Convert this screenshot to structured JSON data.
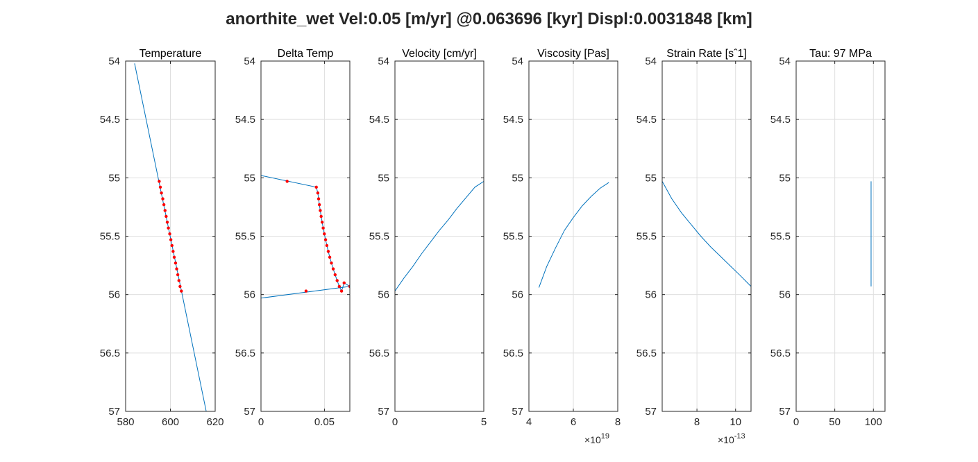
{
  "figure_title": "anorthite_wet Vel:0.05 [m/yr] @0.063696 [kyr] Displ:0.0031848 [km]",
  "colors": {
    "line": "#0072BD",
    "marker": "#FF0000",
    "axis": "#262626",
    "grid": "#DFDFDF"
  },
  "chart_data": [
    {
      "type": "line",
      "title": "Temperature",
      "xlim": [
        580,
        620
      ],
      "ylim": [
        54,
        57
      ],
      "y_reversed": true,
      "grid": true,
      "xticks": [
        580,
        600,
        620
      ],
      "xtick_labels": [
        "580",
        "600",
        "620"
      ],
      "yticks": [
        54,
        54.5,
        55,
        55.5,
        56,
        56.5,
        57
      ],
      "ytick_labels": [
        "54",
        "54.5",
        "55",
        "55.5",
        "56",
        "56.5",
        "57"
      ],
      "series": [
        {
          "style": "line",
          "x": [
            584,
            616
          ],
          "y": [
            54.02,
            57
          ]
        },
        {
          "style": "markers",
          "x": [
            595.0,
            595.5,
            596.0,
            596.6,
            597.1,
            597.6,
            598.1,
            598.6,
            599.1,
            599.7,
            600.2,
            600.7,
            601.2,
            601.7,
            602.3,
            602.8,
            603.3,
            603.8,
            604.3,
            604.9
          ],
          "y": [
            55.03,
            55.08,
            55.13,
            55.18,
            55.23,
            55.28,
            55.33,
            55.38,
            55.43,
            55.48,
            55.53,
            55.58,
            55.63,
            55.68,
            55.73,
            55.78,
            55.83,
            55.88,
            55.93,
            55.97
          ]
        }
      ]
    },
    {
      "type": "line",
      "title": "Delta Temp",
      "xlim": [
        0,
        0.07
      ],
      "ylim": [
        54,
        57
      ],
      "y_reversed": true,
      "grid": true,
      "xticks": [
        0,
        0.05
      ],
      "xtick_labels": [
        "0",
        "0.05"
      ],
      "yticks": [
        54,
        54.5,
        55,
        55.5,
        56,
        56.5,
        57
      ],
      "ytick_labels": [
        "54",
        "54.5",
        "55",
        "55.5",
        "56",
        "56.5",
        "57"
      ],
      "series": [
        {
          "style": "line",
          "x": [
            0,
            0,
            0.0436,
            0.0448,
            0.0454,
            0.046,
            0.0467,
            0.0474,
            0.0482,
            0.049,
            0.0499,
            0.0509,
            0.0519,
            0.053,
            0.0542,
            0.0555,
            0.0569,
            0.0584,
            0.06,
            0.0617,
            0.0635,
            0.0655,
            0.07,
            0,
            0
          ],
          "y": [
            54,
            54.98,
            55.08,
            55.13,
            55.18,
            55.23,
            55.28,
            55.33,
            55.38,
            55.43,
            55.48,
            55.53,
            55.58,
            55.63,
            55.68,
            55.73,
            55.78,
            55.83,
            55.88,
            55.93,
            55.97,
            55.9,
            55.93,
            56.03,
            57
          ]
        },
        {
          "style": "markers",
          "x": [
            0.0206,
            0.0436,
            0.0448,
            0.0454,
            0.046,
            0.0467,
            0.0474,
            0.0482,
            0.049,
            0.0499,
            0.0509,
            0.0519,
            0.053,
            0.0542,
            0.0555,
            0.0569,
            0.0584,
            0.06,
            0.0617,
            0.0635,
            0.0655,
            0.07,
            0.0355
          ],
          "y": [
            55.03,
            55.08,
            55.13,
            55.18,
            55.23,
            55.28,
            55.33,
            55.38,
            55.43,
            55.48,
            55.53,
            55.58,
            55.63,
            55.68,
            55.73,
            55.78,
            55.83,
            55.88,
            55.93,
            55.97,
            55.9,
            55.93,
            55.97
          ]
        }
      ]
    },
    {
      "type": "line",
      "title": "Velocity [cm/yr]",
      "xlim": [
        0,
        5
      ],
      "ylim": [
        54,
        57
      ],
      "y_reversed": true,
      "grid": true,
      "xticks": [
        0,
        5
      ],
      "xtick_labels": [
        "0",
        "5"
      ],
      "yticks": [
        54,
        54.5,
        55,
        55.5,
        56,
        56.5,
        57
      ],
      "ytick_labels": [
        "54",
        "54.5",
        "55",
        "55.5",
        "56",
        "56.5",
        "57"
      ],
      "series": [
        {
          "style": "line",
          "x": [
            0,
            0.5,
            1.0,
            1.5,
            2.0,
            2.5,
            3.0,
            3.5,
            4.0,
            4.5,
            5.0
          ],
          "y": [
            55.97,
            55.86,
            55.76,
            55.65,
            55.55,
            55.45,
            55.36,
            55.26,
            55.17,
            55.08,
            55.03
          ]
        }
      ]
    },
    {
      "type": "line",
      "title": "Viscosity [Pas]",
      "xlim": [
        4,
        8
      ],
      "ylim": [
        54,
        57
      ],
      "y_reversed": true,
      "grid": true,
      "x_exponent": "×10",
      "x_exponent_power": "19",
      "xticks": [
        4,
        6,
        8
      ],
      "xtick_labels": [
        "4",
        "6",
        "8"
      ],
      "yticks": [
        54,
        54.5,
        55,
        55.5,
        56,
        56.5,
        57
      ],
      "ytick_labels": [
        "54",
        "54.5",
        "55",
        "55.5",
        "56",
        "56.5",
        "57"
      ],
      "series": [
        {
          "style": "line",
          "x": [
            4.45,
            4.8,
            5.2,
            5.6,
            6.0,
            6.4,
            6.8,
            7.2,
            7.6
          ],
          "y": [
            55.94,
            55.76,
            55.6,
            55.45,
            55.34,
            55.24,
            55.16,
            55.09,
            55.04
          ]
        }
      ]
    },
    {
      "type": "line",
      "title": "Strain Rate [sˆ1]",
      "xlim": [
        6.2,
        10.8
      ],
      "ylim": [
        54,
        57
      ],
      "y_reversed": true,
      "grid": true,
      "x_exponent": "×10",
      "x_exponent_power": "-13",
      "xticks": [
        8,
        10
      ],
      "xtick_labels": [
        "8",
        "10"
      ],
      "yticks": [
        54,
        54.5,
        55,
        55.5,
        56,
        56.5,
        57
      ],
      "ytick_labels": [
        "54",
        "54.5",
        "55",
        "55.5",
        "56",
        "56.5",
        "57"
      ],
      "series": [
        {
          "style": "line",
          "x": [
            6.2,
            6.7,
            7.2,
            7.7,
            8.2,
            8.7,
            9.2,
            9.7,
            10.2,
            10.8
          ],
          "y": [
            55.03,
            55.18,
            55.3,
            55.4,
            55.5,
            55.59,
            55.67,
            55.75,
            55.83,
            55.93
          ]
        }
      ]
    },
    {
      "type": "line",
      "title": "Tau: 97 MPa",
      "xlim": [
        0,
        115
      ],
      "ylim": [
        54,
        57
      ],
      "y_reversed": true,
      "grid": true,
      "xticks": [
        0,
        50,
        100
      ],
      "xtick_labels": [
        "0",
        "50",
        "100"
      ],
      "yticks": [
        54,
        54.5,
        55,
        55.5,
        56,
        56.5,
        57
      ],
      "ytick_labels": [
        "54",
        "54.5",
        "55",
        "55.5",
        "56",
        "56.5",
        "57"
      ],
      "series": [
        {
          "style": "line",
          "x": [
            97,
            97
          ],
          "y": [
            55.03,
            55.93
          ]
        }
      ]
    }
  ]
}
